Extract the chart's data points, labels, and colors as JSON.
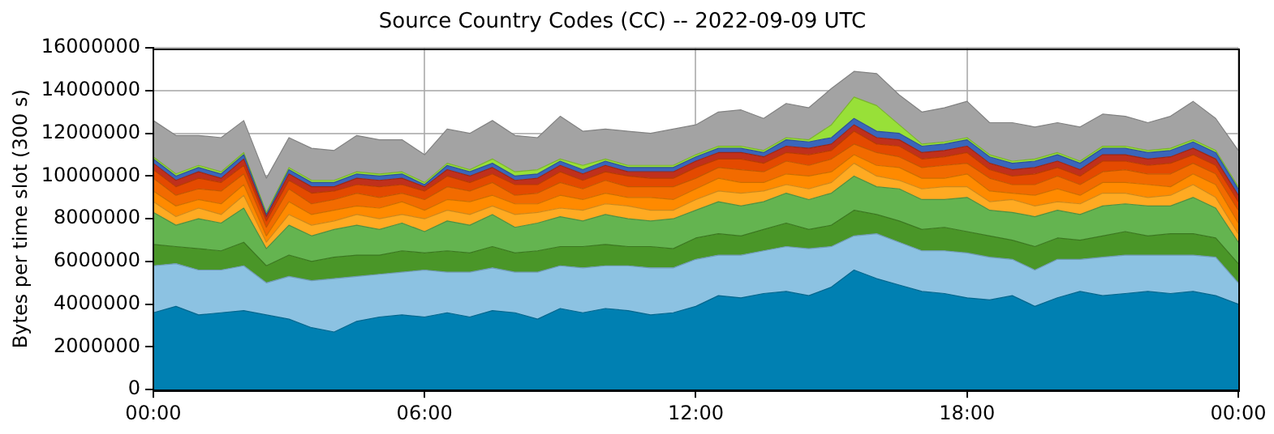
{
  "chart_data": {
    "type": "area",
    "title": "Source Country Codes (CC) -- 2022-09-09 UTC",
    "ylabel": "Bytes per time slot (300 s)",
    "stacked": true,
    "grid": true,
    "legend": false,
    "x": [
      0,
      0.5,
      1,
      1.5,
      2,
      2.5,
      3,
      3.5,
      4,
      4.5,
      5,
      5.5,
      6,
      6.5,
      7,
      7.5,
      8,
      8.5,
      9,
      9.5,
      10,
      10.5,
      11,
      11.5,
      12,
      12.5,
      13,
      13.5,
      14,
      14.5,
      15,
      15.5,
      16,
      16.5,
      17,
      17.5,
      18,
      18.5,
      19,
      19.5,
      20,
      20.5,
      21,
      21.5,
      22,
      22.5,
      23,
      23.5,
      24
    ],
    "xlim": [
      0,
      24
    ],
    "xticks": [
      {
        "value": 0,
        "label": "00:00"
      },
      {
        "value": 6,
        "label": "06:00"
      },
      {
        "value": 12,
        "label": "12:00"
      },
      {
        "value": 18,
        "label": "18:00"
      },
      {
        "value": 24,
        "label": "00:00"
      }
    ],
    "ylim": [
      0,
      16000000
    ],
    "yticks": [
      0,
      2000000,
      4000000,
      6000000,
      8000000,
      10000000,
      12000000,
      14000000,
      16000000
    ],
    "series": [
      {
        "color": "#0080b2",
        "values": [
          3600000,
          3900000,
          3500000,
          3600000,
          3700000,
          3500000,
          3300000,
          2900000,
          2700000,
          3200000,
          3400000,
          3500000,
          3400000,
          3600000,
          3400000,
          3700000,
          3600000,
          3300000,
          3800000,
          3600000,
          3800000,
          3700000,
          3500000,
          3600000,
          3900000,
          4400000,
          4300000,
          4500000,
          4600000,
          4400000,
          4800000,
          5600000,
          5200000,
          4900000,
          4600000,
          4500000,
          4300000,
          4200000,
          4400000,
          3900000,
          4300000,
          4600000,
          4400000,
          4500000,
          4600000,
          4500000,
          4600000,
          4400000,
          4000000
        ]
      },
      {
        "color": "#8cc2e2",
        "values": [
          2200000,
          2000000,
          2100000,
          2000000,
          2100000,
          1500000,
          2000000,
          2200000,
          2500000,
          2100000,
          2000000,
          2000000,
          2200000,
          1900000,
          2100000,
          2000000,
          1900000,
          2200000,
          2000000,
          2100000,
          2000000,
          2100000,
          2200000,
          2100000,
          2200000,
          1900000,
          2000000,
          2000000,
          2100000,
          2200000,
          1900000,
          1600000,
          2100000,
          2000000,
          1900000,
          2000000,
          2100000,
          2000000,
          1700000,
          1700000,
          1800000,
          1500000,
          1800000,
          1800000,
          1700000,
          1800000,
          1700000,
          1800000,
          1000000
        ]
      },
      {
        "color": "#4a9628",
        "values": [
          1000000,
          800000,
          1000000,
          900000,
          1100000,
          800000,
          1000000,
          900000,
          1000000,
          1000000,
          900000,
          1000000,
          800000,
          1000000,
          900000,
          1000000,
          900000,
          1000000,
          900000,
          1000000,
          1000000,
          900000,
          1000000,
          900000,
          1000000,
          1000000,
          900000,
          1000000,
          1100000,
          900000,
          1000000,
          1200000,
          900000,
          1000000,
          1000000,
          1100000,
          1000000,
          1000000,
          900000,
          1100000,
          1000000,
          900000,
          1000000,
          1100000,
          900000,
          1000000,
          1000000,
          900000,
          900000
        ]
      },
      {
        "color": "#64b450",
        "values": [
          1500000,
          1000000,
          1400000,
          1300000,
          1600000,
          800000,
          1400000,
          1200000,
          1300000,
          1400000,
          1200000,
          1300000,
          1000000,
          1400000,
          1300000,
          1500000,
          1200000,
          1300000,
          1400000,
          1200000,
          1400000,
          1300000,
          1200000,
          1400000,
          1300000,
          1500000,
          1400000,
          1300000,
          1400000,
          1400000,
          1500000,
          1600000,
          1300000,
          1500000,
          1400000,
          1300000,
          1600000,
          1200000,
          1300000,
          1400000,
          1300000,
          1200000,
          1400000,
          1300000,
          1400000,
          1300000,
          1700000,
          1400000,
          1000000
        ]
      },
      {
        "color": "#ffaa22",
        "values": [
          500000,
          400000,
          500000,
          400000,
          600000,
          300000,
          500000,
          500000,
          400000,
          500000,
          500000,
          400000,
          600000,
          500000,
          500000,
          400000,
          600000,
          500000,
          400000,
          500000,
          500000,
          600000,
          500000,
          400000,
          500000,
          500000,
          600000,
          500000,
          400000,
          500000,
          500000,
          600000,
          500000,
          400000,
          500000,
          600000,
          500000,
          400000,
          600000,
          500000,
          400000,
          500000,
          600000,
          500000,
          400000,
          500000,
          600000,
          500000,
          400000
        ]
      },
      {
        "color": "#ff8a00",
        "values": [
          500000,
          500000,
          400000,
          500000,
          500000,
          300000,
          600000,
          500000,
          500000,
          400000,
          500000,
          600000,
          400000,
          500000,
          600000,
          500000,
          500000,
          400000,
          600000,
          500000,
          500000,
          400000,
          600000,
          500000,
          500000,
          600000,
          500000,
          400000,
          500000,
          600000,
          500000,
          400000,
          500000,
          600000,
          500000,
          400000,
          600000,
          500000,
          300000,
          500000,
          600000,
          400000,
          500000,
          500000,
          600000,
          400000,
          500000,
          600000,
          500000
        ]
      },
      {
        "color": "#f26b00",
        "values": [
          600000,
          500000,
          500000,
          600000,
          500000,
          400000,
          600000,
          500000,
          500000,
          600000,
          500000,
          400000,
          500000,
          600000,
          500000,
          600000,
          400000,
          500000,
          600000,
          500000,
          600000,
          500000,
          500000,
          600000,
          500000,
          500000,
          600000,
          500000,
          600000,
          500000,
          600000,
          500000,
          600000,
          500000,
          500000,
          600000,
          500000,
          600000,
          400000,
          500000,
          600000,
          500000,
          500000,
          600000,
          500000,
          600000,
          500000,
          500000,
          600000
        ]
      },
      {
        "color": "#e44a00",
        "values": [
          400000,
          400000,
          500000,
          400000,
          400000,
          300000,
          400000,
          500000,
          400000,
          400000,
          500000,
          400000,
          400000,
          500000,
          400000,
          400000,
          500000,
          400000,
          500000,
          400000,
          400000,
          500000,
          400000,
          400000,
          500000,
          400000,
          500000,
          400000,
          400000,
          500000,
          400000,
          600000,
          400000,
          500000,
          400000,
          400000,
          500000,
          400000,
          400000,
          500000,
          400000,
          400000,
          500000,
          400000,
          400000,
          500000,
          400000,
          400000,
          400000
        ]
      },
      {
        "color": "#c0301c",
        "values": [
          300000,
          300000,
          300000,
          200000,
          300000,
          200000,
          300000,
          300000,
          200000,
          300000,
          300000,
          300000,
          200000,
          300000,
          300000,
          300000,
          200000,
          300000,
          300000,
          300000,
          300000,
          200000,
          300000,
          300000,
          300000,
          300000,
          300000,
          300000,
          300000,
          300000,
          300000,
          300000,
          300000,
          300000,
          300000,
          300000,
          300000,
          300000,
          300000,
          300000,
          300000,
          300000,
          300000,
          300000,
          300000,
          300000,
          300000,
          300000,
          300000
        ]
      },
      {
        "color": "#3a66bb",
        "values": [
          200000,
          200000,
          200000,
          200000,
          200000,
          100000,
          200000,
          200000,
          200000,
          200000,
          200000,
          200000,
          100000,
          200000,
          200000,
          200000,
          200000,
          200000,
          200000,
          200000,
          200000,
          200000,
          200000,
          200000,
          200000,
          200000,
          200000,
          200000,
          300000,
          300000,
          300000,
          300000,
          300000,
          300000,
          300000,
          300000,
          300000,
          300000,
          300000,
          300000,
          300000,
          300000,
          300000,
          300000,
          300000,
          300000,
          300000,
          300000,
          300000
        ]
      },
      {
        "color": "#98e038",
        "values": [
          100000,
          100000,
          100000,
          100000,
          100000,
          100000,
          100000,
          100000,
          100000,
          100000,
          100000,
          100000,
          100000,
          100000,
          100000,
          200000,
          200000,
          200000,
          100000,
          200000,
          100000,
          100000,
          100000,
          100000,
          100000,
          100000,
          100000,
          100000,
          100000,
          100000,
          600000,
          1000000,
          1200000,
          400000,
          100000,
          100000,
          100000,
          100000,
          100000,
          100000,
          100000,
          100000,
          100000,
          100000,
          100000,
          100000,
          100000,
          100000,
          100000
        ]
      },
      {
        "color": "#a3a3a3",
        "values": [
          1700000,
          1800000,
          1400000,
          1600000,
          1500000,
          1600000,
          1400000,
          1500000,
          1400000,
          1700000,
          1600000,
          1500000,
          1300000,
          1600000,
          1700000,
          1800000,
          1700000,
          1500000,
          2000000,
          1600000,
          1400000,
          1600000,
          1500000,
          1700000,
          1400000,
          1600000,
          1700000,
          1500000,
          1600000,
          1500000,
          1700000,
          1200000,
          1500000,
          1400000,
          1500000,
          1600000,
          1700000,
          1500000,
          1800000,
          1500000,
          1400000,
          1600000,
          1500000,
          1400000,
          1300000,
          1500000,
          1800000,
          1500000,
          1700000
        ]
      }
    ]
  }
}
